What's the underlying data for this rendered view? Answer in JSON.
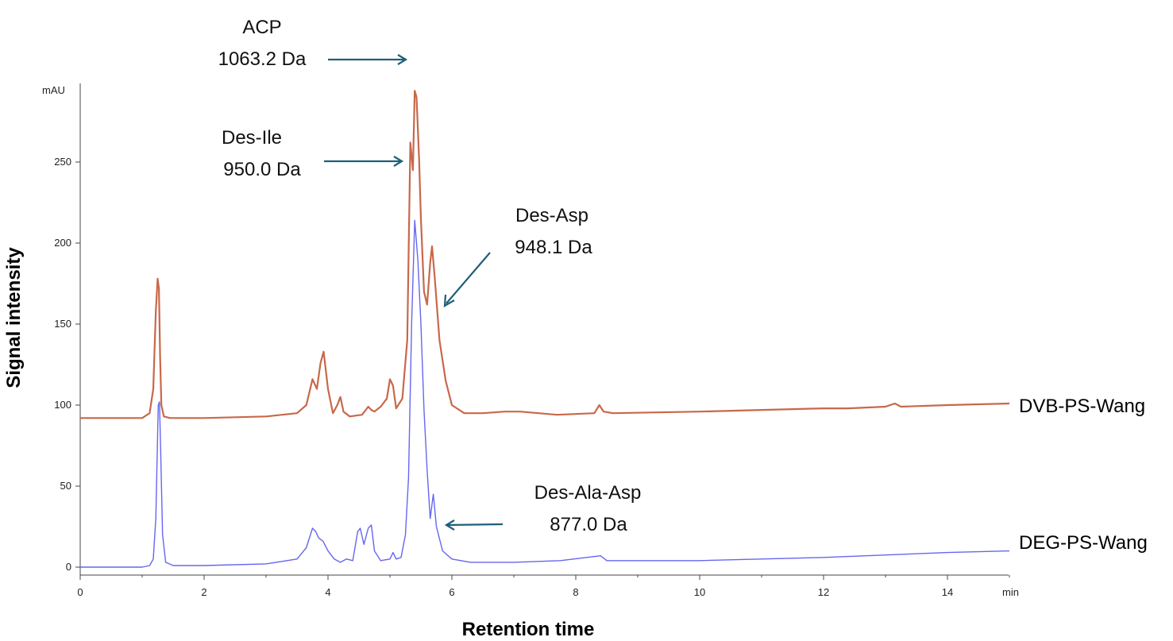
{
  "chart_data": {
    "type": "line",
    "title": "",
    "xlabel": "Retention time",
    "ylabel": "Signal intensity",
    "y_unit": "mAU",
    "x_unit": "min",
    "xlim": [
      0,
      15
    ],
    "ylim": [
      -5,
      300
    ],
    "xticks": [
      0,
      2,
      4,
      6,
      8,
      10,
      12,
      14
    ],
    "xtick_labels": [
      "0",
      "2",
      "4",
      "6",
      "8",
      "10",
      "12",
      "14"
    ],
    "yticks": [
      0,
      50,
      100,
      150,
      200,
      250
    ],
    "ytick_labels": [
      "0",
      "50",
      "100",
      "150",
      "200",
      "250"
    ],
    "grid": false,
    "series": [
      {
        "name": "DVB-PS-Wang",
        "color": "#c8684a",
        "x": [
          0,
          1.0,
          1.12,
          1.18,
          1.22,
          1.25,
          1.27,
          1.29,
          1.31,
          1.35,
          1.45,
          1.6,
          2.0,
          3.0,
          3.5,
          3.65,
          3.75,
          3.82,
          3.88,
          3.93,
          4.0,
          4.08,
          4.15,
          4.2,
          4.25,
          4.35,
          4.55,
          4.65,
          4.7,
          4.75,
          4.85,
          4.95,
          5.0,
          5.05,
          5.1,
          5.2,
          5.28,
          5.33,
          5.37,
          5.4,
          5.43,
          5.47,
          5.5,
          5.55,
          5.6,
          5.65,
          5.68,
          5.72,
          5.8,
          5.9,
          6.0,
          6.2,
          6.5,
          6.85,
          7.1,
          7.7,
          8.3,
          8.38,
          8.45,
          8.6,
          10.0,
          11.0,
          12.0,
          12.4,
          13.0,
          13.15,
          13.25,
          14.0,
          15.0
        ],
        "values": [
          92,
          92,
          95,
          110,
          158,
          178,
          172,
          130,
          100,
          93,
          92,
          92,
          92,
          93,
          95,
          100,
          116,
          110,
          126,
          133,
          110,
          95,
          100,
          105,
          96,
          93,
          94,
          99,
          97,
          96,
          99,
          104,
          116,
          112,
          98,
          104,
          140,
          262,
          245,
          294,
          290,
          252,
          215,
          170,
          162,
          188,
          198,
          180,
          140,
          115,
          100,
          95,
          95,
          96,
          96,
          94,
          95,
          100,
          96,
          95,
          96,
          97,
          98,
          98,
          99,
          101,
          99,
          100,
          101
        ]
      },
      {
        "name": "DEG-PS-Wang",
        "color": "#6666f0",
        "x": [
          0,
          1.0,
          1.12,
          1.18,
          1.22,
          1.26,
          1.28,
          1.3,
          1.33,
          1.38,
          1.5,
          2.0,
          3.0,
          3.5,
          3.65,
          3.75,
          3.8,
          3.85,
          3.92,
          4.0,
          4.1,
          4.2,
          4.3,
          4.4,
          4.48,
          4.52,
          4.58,
          4.65,
          4.7,
          4.75,
          4.85,
          5.0,
          5.05,
          5.1,
          5.18,
          5.25,
          5.3,
          5.35,
          5.4,
          5.45,
          5.5,
          5.55,
          5.6,
          5.65,
          5.7,
          5.75,
          5.85,
          6.0,
          6.3,
          7.0,
          7.75,
          8.4,
          8.5,
          10.0,
          12.0,
          14.0,
          15.0
        ],
        "values": [
          0,
          0,
          1,
          5,
          30,
          100,
          102,
          70,
          20,
          3,
          1,
          1,
          2,
          5,
          12,
          24,
          22,
          18,
          16,
          10,
          5,
          3,
          5,
          4,
          22,
          24,
          14,
          24,
          26,
          10,
          4,
          5,
          9,
          5,
          6,
          20,
          55,
          150,
          214,
          190,
          150,
          97,
          60,
          30,
          45,
          25,
          10,
          5,
          3,
          3,
          4,
          7,
          4,
          4,
          6,
          9,
          10
        ]
      }
    ],
    "annotations": [
      {
        "lines": [
          "ACP",
          "1063.2 Da"
        ]
      },
      {
        "lines": [
          "Des-Ile",
          "950.0 Da"
        ]
      },
      {
        "lines": [
          "Des-Asp",
          "948.1 Da"
        ]
      },
      {
        "lines": [
          "Des-Ala-Asp",
          "877.0 Da"
        ]
      }
    ]
  }
}
